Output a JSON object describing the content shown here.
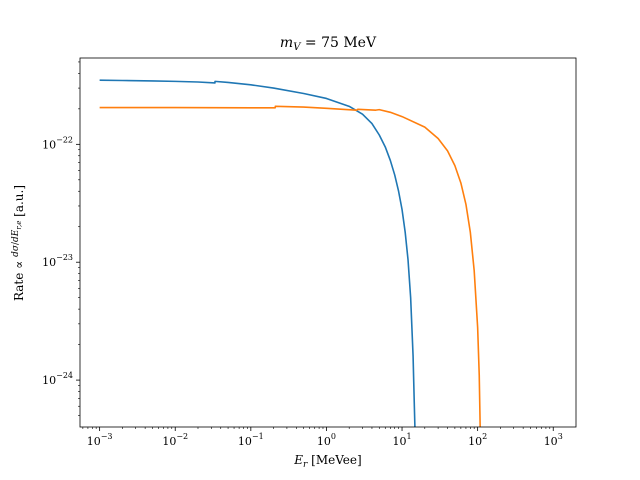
{
  "chart_data": {
    "type": "line",
    "title": "m_V = 75 MeV",
    "title_parts": {
      "base": "m",
      "sub": "V",
      "rest": " = 75 MeV"
    },
    "xlabel": "E_r [MeVee]",
    "xlabel_parts": {
      "base": "E",
      "sub": "r",
      "rest": " [MeVee]"
    },
    "ylabel": "Rate ∝ dσ/dE_{r,e} [a.u.]",
    "ylabel_parts": {
      "lead": "Rate ∝ ",
      "num": "dσ",
      "den": "dE",
      "den_sub": "r,e",
      "tail": " [a.u.]"
    },
    "xscale": "log",
    "yscale": "log",
    "xlim": [
      0.00055,
      2000
    ],
    "ylim": [
      4e-25,
      5.4e-22
    ],
    "xticks": [
      {
        "value": 0.001,
        "base": "10",
        "exp": "−3"
      },
      {
        "value": 0.01,
        "base": "10",
        "exp": "−2"
      },
      {
        "value": 0.1,
        "base": "10",
        "exp": "−1"
      },
      {
        "value": 1,
        "base": "10",
        "exp": "0"
      },
      {
        "value": 10,
        "base": "10",
        "exp": "1"
      },
      {
        "value": 100,
        "base": "10",
        "exp": "2"
      },
      {
        "value": 1000,
        "base": "10",
        "exp": "3"
      }
    ],
    "yticks": [
      {
        "value": 1e-24,
        "base": "10",
        "exp": "−24"
      },
      {
        "value": 1e-23,
        "base": "10",
        "exp": "−23"
      },
      {
        "value": 1e-22,
        "base": "10",
        "exp": "−22"
      }
    ],
    "grid": false,
    "legend": "none",
    "series": [
      {
        "color": "#1f77b4",
        "points": [
          [
            0.001,
            3.5e-22
          ],
          [
            0.002,
            3.48e-22
          ],
          [
            0.005,
            3.45e-22
          ],
          [
            0.01,
            3.42e-22
          ],
          [
            0.02,
            3.38e-22
          ],
          [
            0.0335,
            3.32e-22
          ],
          [
            0.0336,
            3.42e-22
          ],
          [
            0.05,
            3.35e-22
          ],
          [
            0.1,
            3.2e-22
          ],
          [
            0.2,
            3e-22
          ],
          [
            0.5,
            2.7e-22
          ],
          [
            1.0,
            2.45e-22
          ],
          [
            2.0,
            2.1e-22
          ],
          [
            3.0,
            1.8e-22
          ],
          [
            4.0,
            1.5e-22
          ],
          [
            5.0,
            1.2e-22
          ],
          [
            6.0,
            9.5e-23
          ],
          [
            7.0,
            7.3e-23
          ],
          [
            8.0,
            5.5e-23
          ],
          [
            9.0,
            4e-23
          ],
          [
            10.0,
            2.8e-23
          ],
          [
            11.0,
            1.8e-23
          ],
          [
            12.0,
            1.05e-23
          ],
          [
            13.0,
            5e-24
          ],
          [
            14.0,
            1.6e-24
          ],
          [
            14.5,
            6.5e-25
          ],
          [
            14.8,
            4e-25
          ]
        ]
      },
      {
        "color": "#ff7f0e",
        "points": [
          [
            0.001,
            2.05e-22
          ],
          [
            0.01,
            2.05e-22
          ],
          [
            0.1,
            2.04e-22
          ],
          [
            0.21,
            2.04e-22
          ],
          [
            0.211,
            2.1e-22
          ],
          [
            0.5,
            2.07e-22
          ],
          [
            1.0,
            2.02e-22
          ],
          [
            2.5,
            1.95e-22
          ],
          [
            2.6,
            1.98e-22
          ],
          [
            4.5,
            1.95e-22
          ],
          [
            5.0,
            1.97e-22
          ],
          [
            7.0,
            1.87e-22
          ],
          [
            10.0,
            1.72e-22
          ],
          [
            20.0,
            1.4e-22
          ],
          [
            30.0,
            1.12e-22
          ],
          [
            40.0,
            8.8e-23
          ],
          [
            50.0,
            6.6e-23
          ],
          [
            60.0,
            4.7e-23
          ],
          [
            70.0,
            3.1e-23
          ],
          [
            80.0,
            1.8e-23
          ],
          [
            90.0,
            8.5e-24
          ],
          [
            100.0,
            2.8e-24
          ],
          [
            105.0,
            1.1e-24
          ],
          [
            108.0,
            4e-25
          ]
        ]
      }
    ]
  }
}
